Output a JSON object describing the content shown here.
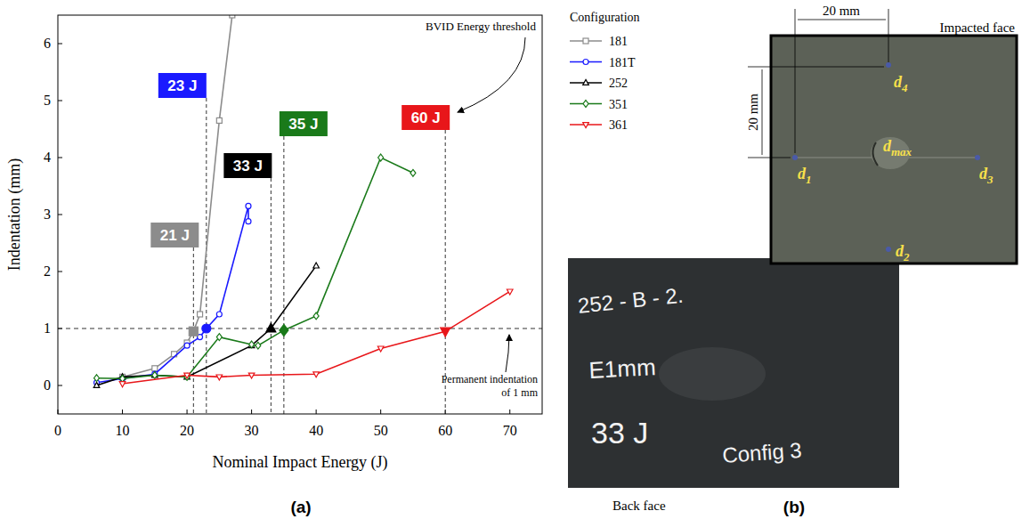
{
  "chart_data": {
    "type": "line",
    "x_label": "Nominal Impact Energy (J)",
    "y_label": "Indentation (mm)",
    "xlim": [
      0,
      75
    ],
    "xticks": [
      0,
      10,
      20,
      30,
      40,
      50,
      60,
      70
    ],
    "ylim": [
      -0.5,
      6.5
    ],
    "yticks": [
      0,
      1,
      2,
      3,
      4,
      5,
      6
    ],
    "grid": false,
    "legend": "right",
    "legend_title": "Configuration",
    "series": [
      {
        "name": "181",
        "color": "#8c8c8c",
        "marker": "square",
        "x": [
          10,
          15,
          18,
          20,
          21,
          22,
          25,
          27
        ],
        "values": [
          0.15,
          0.3,
          0.55,
          0.75,
          0.95,
          1.25,
          4.65,
          6.5
        ]
      },
      {
        "name": "181T",
        "color": "#1a1aff",
        "marker": "circle",
        "x": [
          6,
          10,
          15,
          20,
          22,
          23,
          25,
          29.5,
          29.5
        ],
        "values": [
          0.05,
          0.12,
          0.2,
          0.7,
          0.85,
          1.0,
          1.25,
          3.15,
          2.88
        ]
      },
      {
        "name": "252",
        "color": "#000000",
        "marker": "triangle",
        "x": [
          6,
          10,
          15,
          20,
          30,
          33,
          40
        ],
        "values": [
          0.0,
          0.15,
          0.18,
          0.15,
          0.7,
          1.0,
          2.1
        ]
      },
      {
        "name": "351",
        "color": "#1a7a1a",
        "marker": "diamond",
        "x": [
          6,
          10,
          15,
          20,
          25,
          30,
          31,
          35,
          40,
          50,
          55
        ],
        "values": [
          0.13,
          0.12,
          0.18,
          0.15,
          0.85,
          0.72,
          0.7,
          0.97,
          1.22,
          4.0,
          3.73
        ]
      },
      {
        "name": "361",
        "color": "#e8161a",
        "marker": "triangle-down",
        "x": [
          10,
          20,
          25,
          30,
          40,
          50,
          60,
          70
        ],
        "values": [
          0.03,
          0.18,
          0.15,
          0.18,
          0.2,
          0.65,
          0.95,
          1.65
        ]
      }
    ],
    "reference_line": 1,
    "thresholds": [
      {
        "series": "181",
        "energy": 21,
        "indentation": 0.95,
        "label": "21 J"
      },
      {
        "series": "181T",
        "energy": 23,
        "indentation": 1.0,
        "label": "23 J"
      },
      {
        "series": "252",
        "energy": 33,
        "indentation": 1.0,
        "label": "33 J"
      },
      {
        "series": "351",
        "energy": 35,
        "indentation": 0.97,
        "label": "35 J"
      },
      {
        "series": "361",
        "energy": 60,
        "indentation": 0.95,
        "label": "60 J"
      }
    ],
    "annotations": {
      "threshold_note": "BVID Energy threshold",
      "line_note": [
        "Permanent indentation",
        "of 1 mm"
      ]
    }
  },
  "panel_labels": [
    "(a)",
    "(b)"
  ],
  "photo": {
    "dimension_h": "20 mm",
    "dimension_v": "20 mm",
    "impacted_face_label": "Impacted face",
    "back_face_label": "Back face",
    "points": [
      {
        "base": "d",
        "sub": "4"
      },
      {
        "base": "d",
        "sub": "1"
      },
      {
        "base": "d",
        "sub": "max"
      },
      {
        "base": "d",
        "sub": "3"
      },
      {
        "base": "d",
        "sub": "2"
      }
    ],
    "handwriting": [
      "252 - B - 2.",
      "E1mm",
      "33 J",
      "Config 3"
    ]
  }
}
